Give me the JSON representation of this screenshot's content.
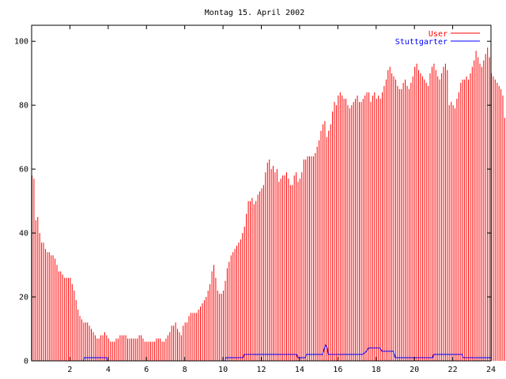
{
  "chart_data": {
    "type": "bar",
    "title": "Montag 15. April 2002",
    "xlabel": "",
    "ylabel": "",
    "xlim": [
      0,
      24
    ],
    "ylim": [
      0,
      105
    ],
    "x_ticks": [
      "2",
      "4",
      "6",
      "8",
      "10",
      "12",
      "14",
      "16",
      "18",
      "20",
      "22",
      "24"
    ],
    "y_ticks": [
      "0",
      "20",
      "40",
      "60",
      "80",
      "100"
    ],
    "grid": false,
    "legend_position": "top-right",
    "interval_hours": 0.1,
    "series": [
      {
        "name": "User",
        "style": "impulses",
        "color": "#ff0000",
        "values": [
          58,
          57,
          44,
          45,
          40,
          37,
          37,
          35,
          34,
          34,
          33,
          33,
          32,
          30,
          28,
          28,
          27,
          26,
          26,
          26,
          26,
          24,
          22,
          19,
          16,
          14,
          13,
          12,
          12,
          12,
          11,
          10,
          9,
          8,
          7,
          7,
          8,
          8,
          9,
          8,
          7,
          6,
          6,
          6,
          7,
          7,
          8,
          8,
          8,
          8,
          7,
          7,
          7,
          7,
          7,
          7,
          8,
          8,
          7,
          6,
          6,
          6,
          6,
          6,
          6,
          7,
          7,
          7,
          6,
          6,
          7,
          8,
          9,
          11,
          11,
          12,
          10,
          9,
          8,
          11,
          12,
          12,
          14,
          15,
          15,
          15,
          15,
          16,
          17,
          18,
          19,
          20,
          22,
          24,
          28,
          30,
          26,
          22,
          21,
          21,
          22,
          25,
          29,
          31,
          33,
          34,
          35,
          36,
          37,
          38,
          40,
          42,
          46,
          50,
          50,
          51,
          49,
          50,
          52,
          53,
          54,
          55,
          59,
          62,
          63,
          60,
          61,
          59,
          60,
          56,
          57,
          58,
          58,
          59,
          57,
          55,
          55,
          58,
          59,
          56,
          57,
          59,
          63,
          63,
          64,
          64,
          64,
          64,
          65,
          67,
          69,
          72,
          74,
          75,
          70,
          72,
          74,
          78,
          81,
          80,
          83,
          84,
          83,
          82,
          82,
          80,
          79,
          80,
          81,
          82,
          83,
          81,
          81,
          82,
          83,
          84,
          84,
          81,
          83,
          84,
          82,
          83,
          82,
          84,
          86,
          88,
          91,
          92,
          90,
          89,
          88,
          86,
          85,
          85,
          87,
          88,
          86,
          85,
          87,
          89,
          92,
          93,
          91,
          90,
          89,
          88,
          87,
          86,
          90,
          92,
          93,
          91,
          89,
          88,
          90,
          92,
          93,
          91,
          80,
          81,
          80,
          79,
          82,
          84,
          87,
          88,
          88,
          89,
          88,
          90,
          92,
          94,
          97,
          95,
          93,
          92,
          94,
          96,
          98,
          95,
          90,
          89,
          88,
          87,
          86,
          85,
          83,
          76
        ]
      },
      {
        "name": "Stuttgarter",
        "style": "lines",
        "color": "#0000ff",
        "points": [
          [
            0,
            0
          ],
          [
            2.7,
            0
          ],
          [
            2.75,
            1
          ],
          [
            3.9,
            1
          ],
          [
            3.95,
            0
          ],
          [
            10.1,
            0
          ],
          [
            10.15,
            1
          ],
          [
            11.05,
            1
          ],
          [
            11.1,
            2
          ],
          [
            13.85,
            2
          ],
          [
            13.9,
            1
          ],
          [
            14.3,
            1
          ],
          [
            14.35,
            2
          ],
          [
            15.2,
            2
          ],
          [
            15.35,
            5
          ],
          [
            15.45,
            4
          ],
          [
            15.5,
            2
          ],
          [
            17.3,
            2
          ],
          [
            17.5,
            3
          ],
          [
            17.6,
            4
          ],
          [
            18.2,
            4
          ],
          [
            18.3,
            3
          ],
          [
            18.9,
            3
          ],
          [
            19.0,
            1
          ],
          [
            20.95,
            1
          ],
          [
            21.0,
            2
          ],
          [
            22.5,
            2
          ],
          [
            22.55,
            1
          ],
          [
            24,
            1
          ]
        ]
      }
    ]
  }
}
